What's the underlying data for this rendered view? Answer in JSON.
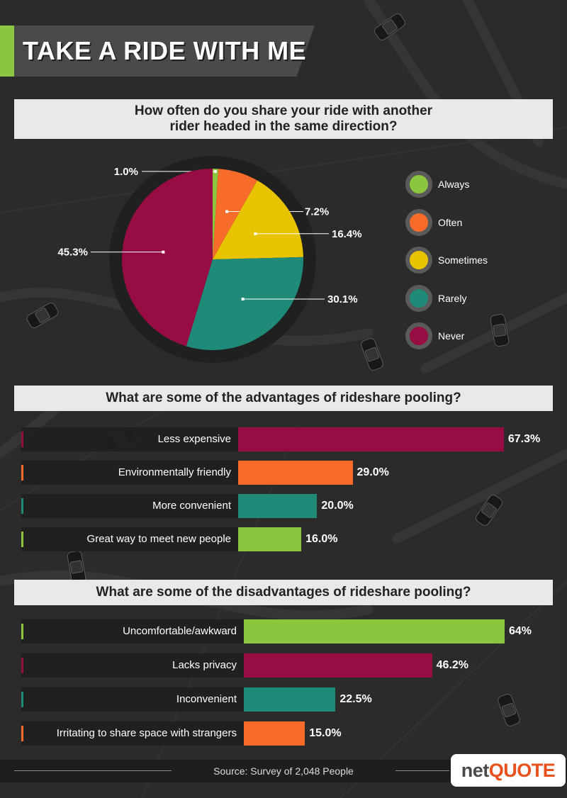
{
  "title": "TAKE A RIDE WITH ME",
  "colors": {
    "always": "#8cc63f",
    "often": "#f76b2b",
    "sometimes": "#e8c400",
    "rarely": "#1f8a78",
    "never": "#980c44",
    "header_bg": "#e9e9e9",
    "background": "#2b2b2b"
  },
  "icons": [
    "car-icon"
  ],
  "footer": {
    "source": "Source: Survey of 2,048 People",
    "logo_prefix": "net",
    "logo_suffix": "QUOTE"
  },
  "chart_data": [
    {
      "type": "pie",
      "title": "How often do you share your ride with another rider headed in the same direction?",
      "title_lines": [
        "How often do you share your ride with another",
        "rider headed in the same direction?"
      ],
      "legend_position": "right",
      "slices": [
        {
          "label": "Always",
          "value": 1.0,
          "value_label": "1.0%",
          "color": "#8cc63f"
        },
        {
          "label": "Often",
          "value": 7.2,
          "value_label": "7.2%",
          "color": "#f76b2b"
        },
        {
          "label": "Sometimes",
          "value": 16.4,
          "value_label": "16.4%",
          "color": "#e8c400"
        },
        {
          "label": "Rarely",
          "value": 30.1,
          "value_label": "30.1%",
          "color": "#1f8a78"
        },
        {
          "label": "Never",
          "value": 45.3,
          "value_label": "45.3%",
          "color": "#980c44"
        }
      ]
    },
    {
      "type": "bar",
      "orientation": "horizontal",
      "title": "What are some of the advantages of rideshare pooling?",
      "xlim": [
        0,
        100
      ],
      "bars": [
        {
          "label": "Less expensive",
          "value": 67.3,
          "value_label": "67.3%",
          "color": "#980c44"
        },
        {
          "label": "Environmentally friendly",
          "value": 29.0,
          "value_label": "29.0%",
          "color": "#f76b2b"
        },
        {
          "label": "More convenient",
          "value": 20.0,
          "value_label": "20.0%",
          "color": "#1f8a78"
        },
        {
          "label": "Great way to meet new people",
          "value": 16.0,
          "value_label": "16.0%",
          "color": "#8cc63f"
        }
      ]
    },
    {
      "type": "bar",
      "orientation": "horizontal",
      "title": "What are some of the disadvantages of rideshare pooling?",
      "xlim": [
        0,
        100
      ],
      "bars": [
        {
          "label": "Uncomfortable/awkward",
          "value": 64,
          "value_label": "64%",
          "color": "#8cc63f"
        },
        {
          "label": "Lacks privacy",
          "value": 46.2,
          "value_label": "46.2%",
          "color": "#980c44"
        },
        {
          "label": "Inconvenient",
          "value": 22.5,
          "value_label": "22.5%",
          "color": "#1f8a78"
        },
        {
          "label": "Irritating to share space with strangers",
          "value": 15.0,
          "value_label": "15.0%",
          "color": "#f76b2b"
        }
      ]
    }
  ]
}
